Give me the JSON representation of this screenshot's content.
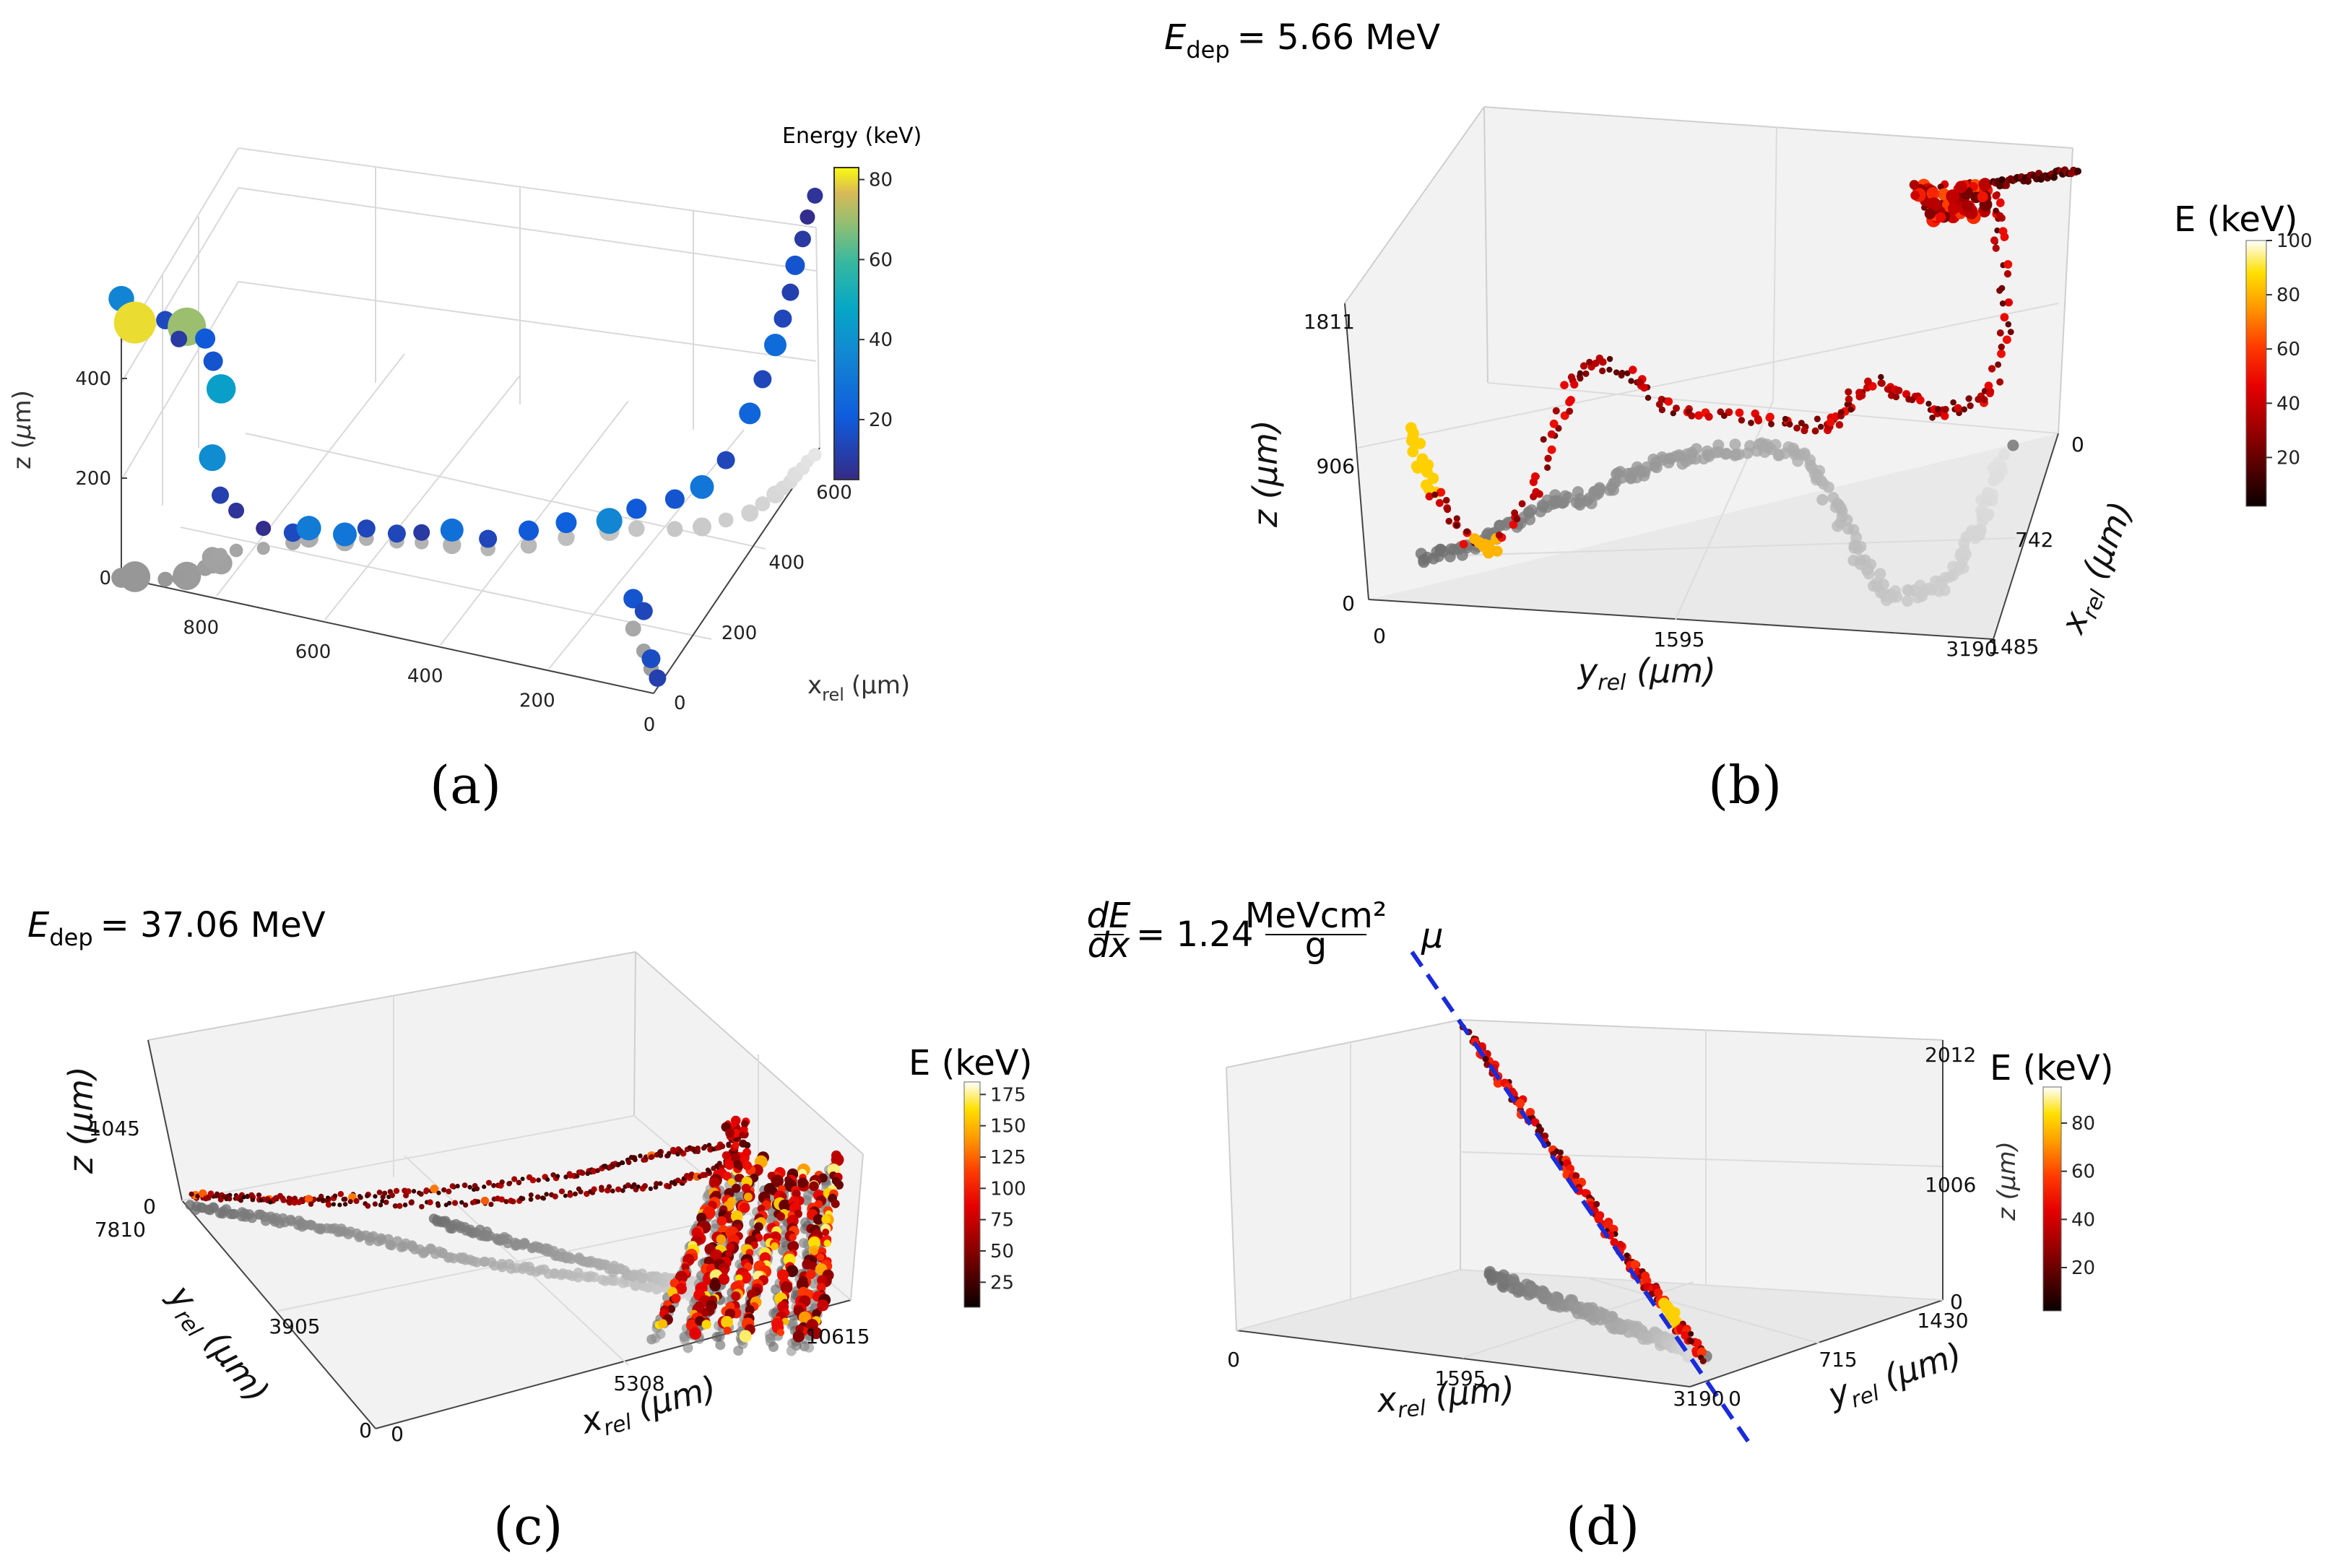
{
  "chart_data": [
    {
      "type": "scatter",
      "panel_label": "(a)",
      "xlabel": "x rel (μm)",
      "xlabel_main": "x",
      "xlabel_sub": "rel",
      "xlabel_unit": "(μm)",
      "zlabel": "z (μm)",
      "x_ticks": [
        "0",
        "200",
        "400",
        "600"
      ],
      "y_ticks": [
        "800",
        "600",
        "400",
        "200",
        "0"
      ],
      "z_ticks": [
        "0",
        "200",
        "400"
      ],
      "colorbar": {
        "title": "Energy (keV)",
        "ticks": [
          "20",
          "40",
          "60",
          "80"
        ],
        "range": [
          5,
          83
        ],
        "colormap": "parula"
      },
      "points": [
        {
          "x": 0,
          "y": 950,
          "z": 560,
          "e": 35
        },
        {
          "x": 10,
          "y": 930,
          "z": 510,
          "e": 80
        },
        {
          "x": 20,
          "y": 880,
          "z": 520,
          "e": 15
        },
        {
          "x": 40,
          "y": 850,
          "z": 500,
          "e": 70
        },
        {
          "x": 30,
          "y": 860,
          "z": 480,
          "e": 10
        },
        {
          "x": 70,
          "y": 830,
          "z": 460,
          "e": 20
        },
        {
          "x": 80,
          "y": 820,
          "z": 410,
          "e": 18
        },
        {
          "x": 90,
          "y": 810,
          "z": 350,
          "e": 45
        },
        {
          "x": 100,
          "y": 830,
          "z": 200,
          "e": 38
        },
        {
          "x": 110,
          "y": 820,
          "z": 120,
          "e": 12
        },
        {
          "x": 130,
          "y": 800,
          "z": 80,
          "e": 8
        },
        {
          "x": 150,
          "y": 760,
          "z": 40,
          "e": 6
        },
        {
          "x": 180,
          "y": 720,
          "z": 20,
          "e": 15
        },
        {
          "x": 200,
          "y": 700,
          "z": 20,
          "e": 32
        },
        {
          "x": 210,
          "y": 640,
          "z": 15,
          "e": 30
        },
        {
          "x": 230,
          "y": 610,
          "z": 20,
          "e": 14
        },
        {
          "x": 240,
          "y": 560,
          "z": 15,
          "e": 14
        },
        {
          "x": 250,
          "y": 520,
          "z": 20,
          "e": 10
        },
        {
          "x": 260,
          "y": 470,
          "z": 30,
          "e": 28
        },
        {
          "x": 270,
          "y": 410,
          "z": 20,
          "e": 14
        },
        {
          "x": 300,
          "y": 350,
          "z": 30,
          "e": 20
        },
        {
          "x": 340,
          "y": 300,
          "z": 30,
          "e": 22
        },
        {
          "x": 380,
          "y": 240,
          "z": 20,
          "e": 36
        },
        {
          "x": 400,
          "y": 200,
          "z": 40,
          "e": 20
        },
        {
          "x": 420,
          "y": 140,
          "z": 60,
          "e": 18
        },
        {
          "x": 440,
          "y": 100,
          "z": 80,
          "e": 30
        },
        {
          "x": 470,
          "y": 70,
          "z": 120,
          "e": 14
        },
        {
          "x": 500,
          "y": 40,
          "z": 200,
          "e": 24
        },
        {
          "x": 530,
          "y": 30,
          "z": 250,
          "e": 14
        },
        {
          "x": 560,
          "y": 20,
          "z": 300,
          "e": 26
        },
        {
          "x": 580,
          "y": 15,
          "z": 340,
          "e": 14
        },
        {
          "x": 600,
          "y": 10,
          "z": 380,
          "e": 12
        },
        {
          "x": 620,
          "y": 10,
          "z": 420,
          "e": 18
        },
        {
          "x": 640,
          "y": 5,
          "z": 460,
          "e": 10
        },
        {
          "x": 660,
          "y": 5,
          "z": 490,
          "e": 6
        },
        {
          "x": 680,
          "y": 0,
          "z": 520,
          "e": 8
        },
        {
          "x": 150,
          "y": 100,
          "z": 60,
          "e": 18
        },
        {
          "x": 100,
          "y": 60,
          "z": 80,
          "e": 14
        },
        {
          "x": 60,
          "y": 30,
          "z": 20,
          "e": 16
        },
        {
          "x": 40,
          "y": 10,
          "z": 0,
          "e": 12
        }
      ]
    },
    {
      "type": "scatter",
      "panel_label": "(b)",
      "title_main": "E",
      "title_sub": "dep",
      "title_value": "= 5.66 MeV",
      "xlabel": "y rel (μm)",
      "ylabel": "x rel (μm)",
      "zlabel": "z (μm)",
      "x_ticks": [
        "0",
        "1595",
        "3190"
      ],
      "y_ticks": [
        "0",
        "742",
        "1485"
      ],
      "z_ticks": [
        "0",
        "906",
        "1811"
      ],
      "colorbar": {
        "title": "E (keV)",
        "ticks": [
          "20",
          "40",
          "60",
          "80",
          "100"
        ],
        "range": [
          2,
          100
        ],
        "colormap": "hot"
      }
    },
    {
      "type": "scatter",
      "panel_label": "(c)",
      "title_main": "E",
      "title_sub": "dep",
      "title_value": "= 37.06 MeV",
      "xlabel": "x rel (μm)",
      "ylabel": "y rel (μm)",
      "zlabel": "z (μm)",
      "x_ticks": [
        "0",
        "5308",
        "10615"
      ],
      "y_ticks": [
        "0",
        "3905",
        "7810"
      ],
      "z_ticks": [
        "0",
        "1045"
      ],
      "colorbar": {
        "title": "E (keV)",
        "ticks": [
          "25",
          "50",
          "75",
          "100",
          "125",
          "150",
          "175"
        ],
        "range": [
          5,
          185
        ],
        "colormap": "hot"
      }
    },
    {
      "type": "scatter",
      "panel_label": "(d)",
      "title_lhs_num": "dE",
      "title_lhs_den": "dx",
      "title_eq": "= 1.24",
      "title_unit_num": "MeVcm²",
      "title_unit_den": "g",
      "line_label": "μ",
      "xlabel": "x rel (μm)",
      "ylabel": "y rel (μm)",
      "zlabel": "z (μm)",
      "x_ticks": [
        "0",
        "1595",
        "3190"
      ],
      "y_ticks": [
        "0",
        "715",
        "1430"
      ],
      "z_ticks": [
        "0",
        "1006",
        "2012"
      ],
      "colorbar": {
        "title": "E (keV)",
        "ticks": [
          "20",
          "40",
          "60",
          "80"
        ],
        "range": [
          2,
          95
        ],
        "colormap": "hot"
      }
    }
  ]
}
